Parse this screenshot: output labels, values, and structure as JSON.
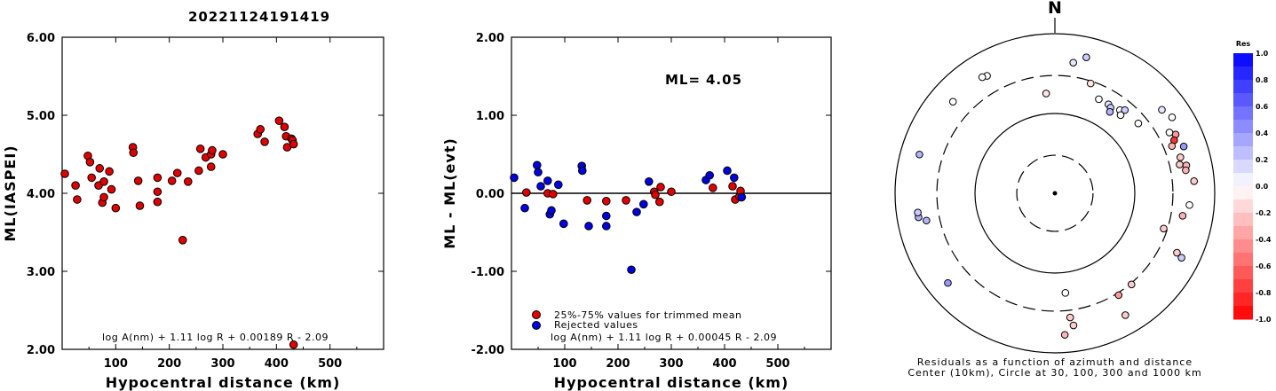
{
  "title": "20221124191419",
  "chart_data": [
    {
      "type": "scatter",
      "xlabel": "Hypocentral distance (km)",
      "ylabel": "ML(IASPEI)",
      "xlim": [
        0,
        600
      ],
      "ylim": [
        2.0,
        6.0
      ],
      "xticks": [
        "100",
        "200",
        "300",
        "400",
        "500"
      ],
      "yticks": [
        "2.00",
        "3.00",
        "4.00",
        "5.00",
        "6.00"
      ],
      "formula": "log A(nm) + 1.11 log R + 0.00189 R - 2.09",
      "series": [
        {
          "color": "#e00000",
          "points": [
            [
              5,
              4.25
            ],
            [
              25,
              4.1
            ],
            [
              28,
              3.92
            ],
            [
              48,
              4.48
            ],
            [
              52,
              4.4
            ],
            [
              55,
              4.2
            ],
            [
              68,
              4.1
            ],
            [
              70,
              4.32
            ],
            [
              75,
              3.88
            ],
            [
              78,
              4.15
            ],
            [
              78,
              3.95
            ],
            [
              88,
              4.28
            ],
            [
              92,
              4.05
            ],
            [
              100,
              3.81
            ],
            [
              132,
              4.59
            ],
            [
              133,
              4.52
            ],
            [
              142,
              4.16
            ],
            [
              145,
              3.84
            ],
            [
              178,
              4.2
            ],
            [
              178,
              4.02
            ],
            [
              178,
              3.89
            ],
            [
              205,
              4.16
            ],
            [
              215,
              4.26
            ],
            [
              225,
              3.4
            ],
            [
              235,
              4.15
            ],
            [
              255,
              4.29
            ],
            [
              258,
              4.57
            ],
            [
              268,
              4.46
            ],
            [
              278,
              4.5
            ],
            [
              278,
              4.34
            ],
            [
              280,
              4.55
            ],
            [
              300,
              4.5
            ],
            [
              365,
              4.76
            ],
            [
              370,
              4.82
            ],
            [
              378,
              4.66
            ],
            [
              405,
              4.93
            ],
            [
              415,
              4.85
            ],
            [
              418,
              4.73
            ],
            [
              420,
              4.59
            ],
            [
              428,
              4.7
            ],
            [
              430,
              4.68
            ],
            [
              432,
              4.63
            ],
            [
              432,
              2.06
            ]
          ]
        }
      ]
    },
    {
      "type": "scatter",
      "xlabel": "Hypocentral distance (km)",
      "ylabel": "ML - ML(evt)",
      "xlim": [
        0,
        600
      ],
      "ylim": [
        -2.0,
        2.0
      ],
      "xticks": [
        "100",
        "200",
        "300",
        "400",
        "500"
      ],
      "yticks": [
        "-2.00",
        "-1.00",
        "0.00",
        "1.00",
        "2.00"
      ],
      "ml_label": "ML=",
      "ml_value": "4.05",
      "reference_line": 0.0,
      "formula": "log A(nm) + 1.11 log R + 0.00045 R - 2.09",
      "legend": [
        {
          "label": "25%-75% values for trimmed mean",
          "color": "#e00000"
        },
        {
          "label": "Rejected values",
          "color": "#0000e0"
        }
      ],
      "series": [
        {
          "name": "25%-75% values for trimmed mean",
          "color": "#e00000",
          "points": [
            [
              28,
              0.01
            ],
            [
              68,
              0.0
            ],
            [
              78,
              -0.01
            ],
            [
              142,
              -0.09
            ],
            [
              178,
              -0.1
            ],
            [
              215,
              -0.09
            ],
            [
              268,
              0.02
            ],
            [
              270,
              -0.02
            ],
            [
              278,
              -0.11
            ],
            [
              280,
              0.08
            ],
            [
              300,
              0.02
            ],
            [
              378,
              0.07
            ],
            [
              415,
              0.09
            ],
            [
              420,
              -0.08
            ],
            [
              428,
              -0.04
            ],
            [
              430,
              0.03
            ],
            [
              432,
              -0.05
            ]
          ]
        },
        {
          "name": "Rejected values",
          "color": "#0000e0",
          "points": [
            [
              5,
              0.2
            ],
            [
              25,
              -0.19
            ],
            [
              48,
              0.36
            ],
            [
              50,
              0.27
            ],
            [
              55,
              0.09
            ],
            [
              68,
              0.16
            ],
            [
              72,
              -0.27
            ],
            [
              75,
              -0.22
            ],
            [
              88,
              0.11
            ],
            [
              98,
              -0.39
            ],
            [
              132,
              0.35
            ],
            [
              133,
              0.29
            ],
            [
              145,
              -0.42
            ],
            [
              178,
              -0.29
            ],
            [
              178,
              -0.42
            ],
            [
              225,
              -0.98
            ],
            [
              235,
              -0.24
            ],
            [
              248,
              -0.14
            ],
            [
              258,
              0.15
            ],
            [
              365,
              0.17
            ],
            [
              372,
              0.23
            ],
            [
              405,
              0.29
            ],
            [
              418,
              0.2
            ],
            [
              432,
              -0.05
            ]
          ]
        }
      ]
    },
    {
      "type": "scatter",
      "subtype": "polar",
      "north_label": "N",
      "caption_line1": "Residuals as a function of azimuth and distance",
      "caption_line2": "Center (10km), Circle at 30, 100, 300 and 1000 km",
      "colorbar_title": "Res",
      "colorbar_ticks": [
        "1.0",
        "0.8",
        "0.6",
        "0.4",
        "0.2",
        "0.0",
        "-0.2",
        "-0.4",
        "-0.6",
        "-0.8",
        "-1.0"
      ],
      "rings_km": [
        30,
        100,
        300,
        1000
      ],
      "points": [
        {
          "az": 330,
          "dist": 500,
          "res": 0.0
        },
        {
          "az": 328,
          "dist": 520,
          "res": 0.0
        },
        {
          "az": 312,
          "dist": 520,
          "res": 0.0
        },
        {
          "az": 8,
          "dist": 450,
          "res": 0.1
        },
        {
          "az": 13,
          "dist": 560,
          "res": 0.2
        },
        {
          "az": 25,
          "dist": 200,
          "res": 0.0
        },
        {
          "az": 31,
          "dist": 200,
          "res": 0.1
        },
        {
          "az": 33,
          "dist": 190,
          "res": 0.2
        },
        {
          "az": 34,
          "dist": 170,
          "res": 0.3
        },
        {
          "az": 38,
          "dist": 210,
          "res": 0.0
        },
        {
          "az": 40,
          "dist": 230,
          "res": 0.2
        },
        {
          "az": 40,
          "dist": 190,
          "res": 0.0
        },
        {
          "az": 50,
          "dist": 230,
          "res": 0.0
        },
        {
          "az": 57,
          "dist": 560,
          "res": 0.0
        },
        {
          "az": 52,
          "dist": 500,
          "res": 0.1
        },
        {
          "az": 64,
          "dist": 480,
          "res": -0.4
        },
        {
          "az": 66,
          "dist": 430,
          "res": -0.8
        },
        {
          "az": 68,
          "dist": 380,
          "res": -0.3
        },
        {
          "az": 62,
          "dist": 420,
          "res": 0.0
        },
        {
          "az": 70,
          "dist": 520,
          "res": 0.4
        },
        {
          "az": 74,
          "dist": 430,
          "res": -0.2
        },
        {
          "az": 77,
          "dist": 400,
          "res": -0.2
        },
        {
          "az": 78,
          "dist": 480,
          "res": -0.3
        },
        {
          "az": 80,
          "dist": 460,
          "res": -0.3
        },
        {
          "az": 85,
          "dist": 560,
          "res": -0.2
        },
        {
          "az": 95,
          "dist": 490,
          "res": 0.0
        },
        {
          "az": 100,
          "dist": 420,
          "res": -0.3
        },
        {
          "az": 108,
          "dist": 270,
          "res": -0.2
        },
        {
          "az": 116,
          "dist": 500,
          "res": -0.2
        },
        {
          "az": 117,
          "dist": 600,
          "res": 0.2
        },
        {
          "az": 148,
          "dist": 320,
          "res": -0.4
        },
        {
          "az": 150,
          "dist": 580,
          "res": -0.2
        },
        {
          "az": 172,
          "dist": 470,
          "res": -0.2
        },
        {
          "az": 173,
          "dist": 370,
          "res": -0.2
        },
        {
          "az": 174,
          "dist": 180,
          "res": 0.0
        },
        {
          "az": 176,
          "dist": 600,
          "res": -0.3
        },
        {
          "az": 140,
          "dist": 310,
          "res": -0.2
        },
        {
          "az": 230,
          "dist": 560,
          "res": 0.4
        },
        {
          "az": 258,
          "dist": 440,
          "res": 0.3
        },
        {
          "az": 260,
          "dist": 540,
          "res": 0.3
        },
        {
          "az": 262,
          "dist": 540,
          "res": 0.2
        },
        {
          "az": 286,
          "dist": 580,
          "res": 0.3
        },
        {
          "az": 18,
          "dist": 280,
          "res": -0.1
        },
        {
          "az": 355,
          "dist": 180,
          "res": -0.1
        }
      ]
    }
  ]
}
